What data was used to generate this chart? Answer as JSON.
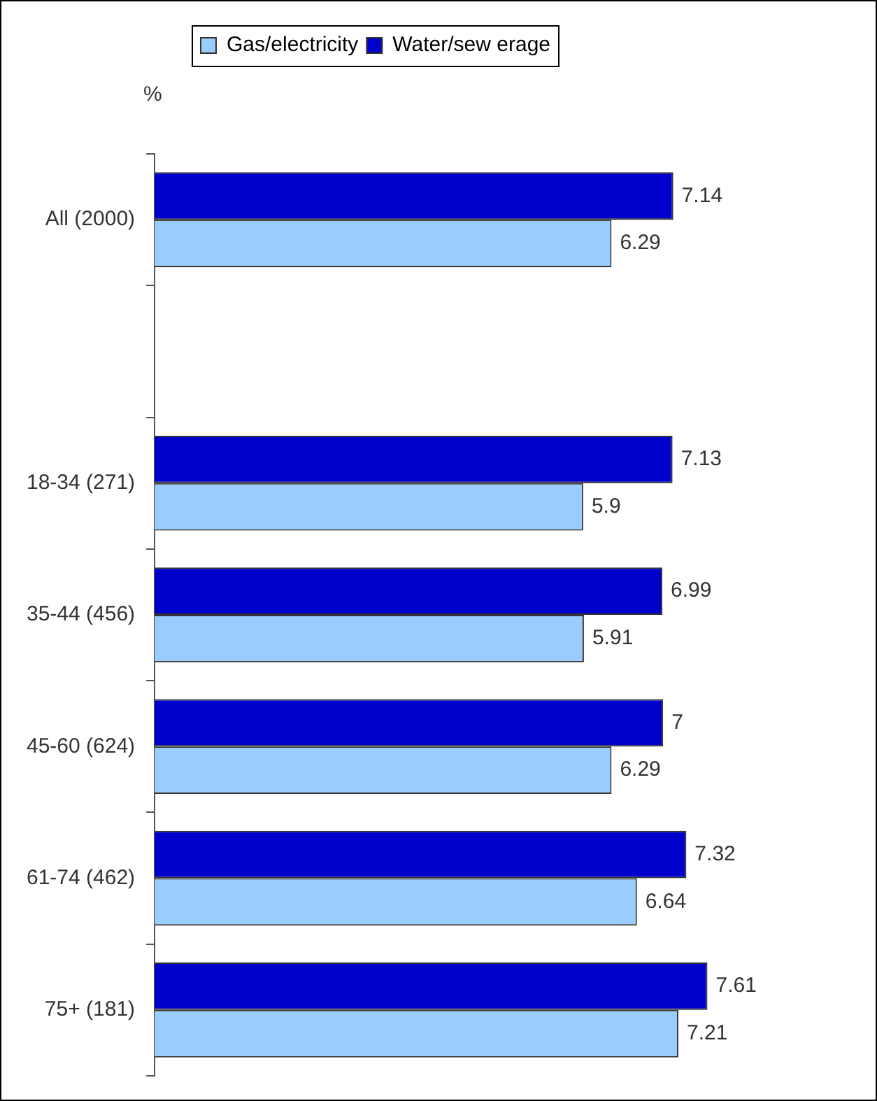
{
  "chart_data": {
    "type": "bar",
    "orientation": "horizontal",
    "xlabel": "%",
    "categories": [
      "All (2000)",
      null,
      "18-34 (271)",
      "35-44 (456)",
      "45-60 (624)",
      "61-74 (462)",
      "75+ (181)"
    ],
    "series": [
      {
        "name": "Gas/electricity",
        "color": "#99ccff",
        "values": [
          6.29,
          null,
          5.9,
          5.91,
          6.29,
          6.64,
          7.21
        ]
      },
      {
        "name": "Water/sew erage",
        "color": "#0000cc",
        "values": [
          7.14,
          null,
          7.13,
          6.99,
          7,
          7.32,
          7.61
        ]
      }
    ],
    "data_labels": true,
    "legend": "top"
  }
}
